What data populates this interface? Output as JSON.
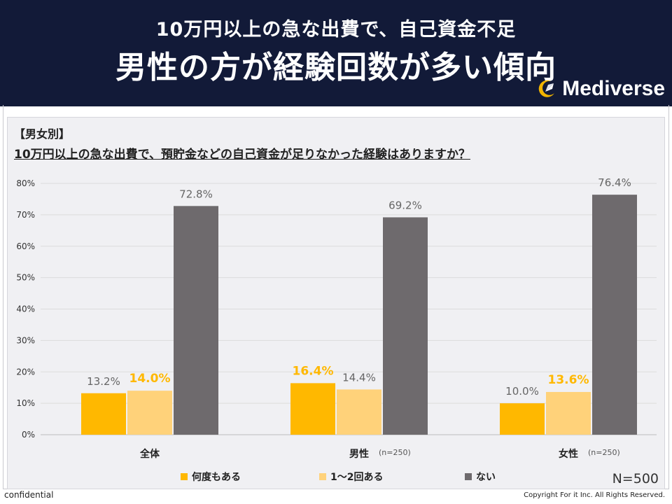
{
  "header": {
    "title_line1": "10万円以上の急な出費で、自己資金不足",
    "title_line2": "男性の方が経験回数が多い傾向",
    "brand": "Mediverse"
  },
  "footer": {
    "confidential": "confidential",
    "copyright": "Copyright For it Inc. All Rights Reserved."
  },
  "colors": {
    "header_bg": "#121a38",
    "series_many": "#ffb800",
    "series_few": "#ffd27a",
    "series_none": "#6e6a6d",
    "highlight_label": "#ffb800",
    "normal_label": "#666666"
  },
  "chart_data": {
    "type": "bar",
    "segment_label": "【男女別】",
    "title": "10万円以上の急な出費で、預貯金などの自己資金が足りなかった経験はありますか？",
    "categories": [
      "全体",
      "男性",
      "女性"
    ],
    "category_notes": [
      "",
      "(n=250)",
      "(n=250)"
    ],
    "series": [
      {
        "name": "何度もある",
        "values": [
          13.2,
          16.4,
          10.0
        ],
        "color": "#ffb800"
      },
      {
        "name": "1～2回ある",
        "values": [
          14.0,
          14.4,
          13.6
        ],
        "color": "#ffd27a"
      },
      {
        "name": "ない",
        "values": [
          72.8,
          69.2,
          76.4
        ],
        "color": "#6e6a6d"
      }
    ],
    "value_labels": [
      [
        "13.2%",
        "14.0%",
        "72.8%"
      ],
      [
        "16.4%",
        "14.4%",
        "69.2%"
      ],
      [
        "10.0%",
        "13.6%",
        "76.4%"
      ]
    ],
    "highlighted": [
      [
        false,
        true,
        false
      ],
      [
        true,
        false,
        false
      ],
      [
        false,
        true,
        false
      ]
    ],
    "ylim": [
      0,
      80
    ],
    "yticks": [
      "0%",
      "10%",
      "20%",
      "30%",
      "40%",
      "50%",
      "60%",
      "70%",
      "80%"
    ],
    "grid": true,
    "legend_position": "bottom",
    "sample_size": "N=500"
  }
}
